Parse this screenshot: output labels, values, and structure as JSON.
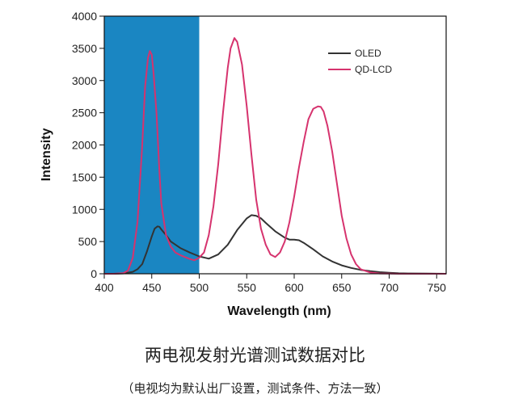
{
  "chart_data": {
    "type": "line",
    "title": "",
    "xlabel": "Wavelength (nm)",
    "ylabel": "Intensity",
    "xlim": [
      400,
      760
    ],
    "ylim": [
      0,
      4000
    ],
    "xticks": [
      400,
      450,
      500,
      550,
      600,
      650,
      700,
      750
    ],
    "yticks": [
      0,
      500,
      1000,
      1500,
      2000,
      2500,
      3000,
      3500,
      4000
    ],
    "grid": false,
    "legend_position": "top-right",
    "highlight_band": {
      "x_from": 400,
      "x_to": 500,
      "color": "#1a86c2"
    },
    "series": [
      {
        "name": "OLED",
        "color": "#333333",
        "x": [
          400,
          410,
          420,
          430,
          435,
          440,
          445,
          450,
          453,
          456,
          458,
          460,
          465,
          470,
          480,
          490,
          500,
          510,
          520,
          530,
          540,
          550,
          555,
          560,
          565,
          570,
          580,
          590,
          595,
          600,
          605,
          610,
          620,
          630,
          640,
          650,
          660,
          670,
          680,
          690,
          700,
          710,
          720,
          740,
          760
        ],
        "y": [
          0,
          0,
          5,
          30,
          70,
          150,
          350,
          580,
          700,
          735,
          730,
          690,
          600,
          500,
          400,
          330,
          270,
          235,
          300,
          450,
          680,
          860,
          910,
          900,
          860,
          790,
          660,
          560,
          530,
          530,
          520,
          480,
          380,
          270,
          190,
          130,
          90,
          60,
          40,
          25,
          15,
          8,
          5,
          2,
          0
        ]
      },
      {
        "name": "QD-LCD",
        "color": "#d6336e",
        "x": [
          400,
          410,
          420,
          425,
          430,
          435,
          440,
          443,
          446,
          448,
          450,
          452,
          455,
          458,
          460,
          465,
          470,
          475,
          480,
          490,
          495,
          500,
          505,
          510,
          515,
          520,
          525,
          530,
          533,
          537,
          540,
          545,
          550,
          555,
          560,
          565,
          570,
          575,
          580,
          585,
          590,
          595,
          600,
          605,
          610,
          615,
          620,
          625,
          628,
          631,
          635,
          640,
          645,
          650,
          655,
          660,
          665,
          670,
          680,
          690,
          700,
          710,
          720,
          740,
          760
        ],
        "y": [
          0,
          0,
          10,
          50,
          250,
          800,
          2000,
          2900,
          3350,
          3460,
          3400,
          3100,
          2500,
          1600,
          1100,
          600,
          420,
          330,
          290,
          230,
          210,
          250,
          330,
          600,
          1050,
          1700,
          2500,
          3200,
          3500,
          3660,
          3600,
          3250,
          2600,
          1850,
          1150,
          700,
          450,
          300,
          260,
          330,
          500,
          800,
          1200,
          1650,
          2050,
          2400,
          2560,
          2600,
          2590,
          2520,
          2300,
          1900,
          1400,
          900,
          550,
          300,
          150,
          70,
          20,
          5,
          2,
          0,
          0,
          0,
          0
        ]
      }
    ]
  }
}
